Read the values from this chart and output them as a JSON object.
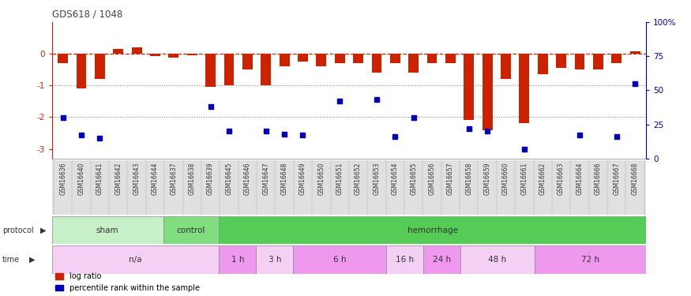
{
  "title": "GDS618 / 1048",
  "samples": [
    "GSM16636",
    "GSM16640",
    "GSM16641",
    "GSM16642",
    "GSM16643",
    "GSM16644",
    "GSM16637",
    "GSM16638",
    "GSM16639",
    "GSM16645",
    "GSM16646",
    "GSM16647",
    "GSM16648",
    "GSM16649",
    "GSM16650",
    "GSM16651",
    "GSM16652",
    "GSM16653",
    "GSM16654",
    "GSM16655",
    "GSM16656",
    "GSM16657",
    "GSM16658",
    "GSM16659",
    "GSM16660",
    "GSM16661",
    "GSM16662",
    "GSM16663",
    "GSM16664",
    "GSM16666",
    "GSM16667",
    "GSM16668"
  ],
  "log_ratio": [
    -0.3,
    -1.1,
    -0.8,
    0.15,
    0.2,
    -0.08,
    -0.12,
    -0.05,
    -1.05,
    -1.0,
    -0.5,
    -1.0,
    -0.4,
    -0.25,
    -0.4,
    -0.3,
    -0.3,
    -0.6,
    -0.3,
    -0.6,
    -0.3,
    -0.3,
    -2.1,
    -2.4,
    -0.8,
    -2.2,
    -0.65,
    -0.45,
    -0.5,
    -0.5,
    -0.3,
    0.08
  ],
  "percentile": [
    30,
    17,
    15,
    null,
    null,
    null,
    null,
    null,
    38,
    20,
    null,
    20,
    18,
    17,
    null,
    42,
    null,
    43,
    16,
    30,
    null,
    null,
    22,
    20,
    null,
    7,
    null,
    null,
    17,
    null,
    16,
    55
  ],
  "protocol_groups": [
    {
      "label": "sham",
      "start": 0,
      "end": 6,
      "color": "#c8f0c8"
    },
    {
      "label": "control",
      "start": 6,
      "end": 9,
      "color": "#80dd80"
    },
    {
      "label": "hemorrhage",
      "start": 9,
      "end": 32,
      "color": "#55cc55"
    }
  ],
  "time_groups": [
    {
      "label": "n/a",
      "start": 0,
      "end": 9,
      "color": "#f5d0f5"
    },
    {
      "label": "1 h",
      "start": 9,
      "end": 11,
      "color": "#ee99ee"
    },
    {
      "label": "3 h",
      "start": 11,
      "end": 13,
      "color": "#f5d0f5"
    },
    {
      "label": "6 h",
      "start": 13,
      "end": 18,
      "color": "#ee99ee"
    },
    {
      "label": "16 h",
      "start": 18,
      "end": 20,
      "color": "#f5d0f5"
    },
    {
      "label": "24 h",
      "start": 20,
      "end": 22,
      "color": "#ee99ee"
    },
    {
      "label": "48 h",
      "start": 22,
      "end": 26,
      "color": "#f5d0f5"
    },
    {
      "label": "72 h",
      "start": 26,
      "end": 32,
      "color": "#ee99ee"
    }
  ],
  "bar_color": "#cc2200",
  "dot_color": "#0000bb",
  "dashed_line_color": "#cc2200",
  "ylim": [
    -3.3,
    1.0
  ],
  "yticks": [
    0,
    -1,
    -2,
    -3
  ],
  "right_yticks": [
    100,
    75,
    50,
    25,
    0
  ],
  "background_color": "#ffffff"
}
